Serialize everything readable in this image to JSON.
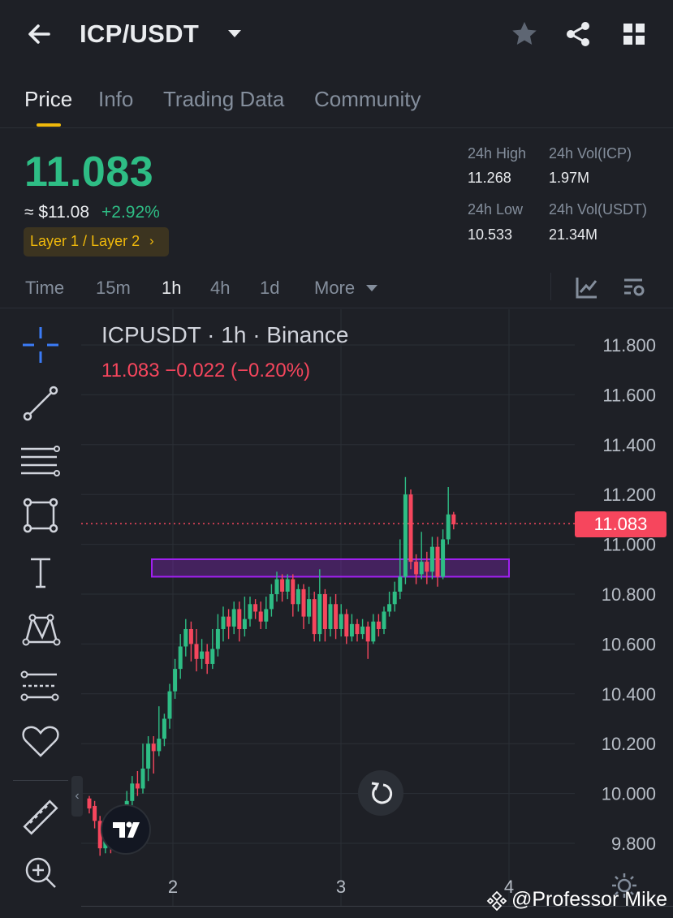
{
  "header": {
    "pair": "ICP/USDT",
    "icons": [
      "back-arrow-icon",
      "caret-down-icon",
      "star-icon",
      "share-icon",
      "grid-icon"
    ]
  },
  "tabs": [
    {
      "label": "Price",
      "active": true
    },
    {
      "label": "Info",
      "active": false
    },
    {
      "label": "Trading Data",
      "active": false
    },
    {
      "label": "Community",
      "active": false
    }
  ],
  "price": {
    "last": "11.083",
    "usd": "≈ $11.08",
    "change_pct": "+2.92%",
    "tag": "Layer 1 / Layer 2",
    "tag_chevron": "›"
  },
  "stats": {
    "high_label": "24h High",
    "high_value": "11.268",
    "low_label": "24h Low",
    "low_value": "10.533",
    "vol_base_label": "24h Vol(ICP)",
    "vol_base_value": "1.97M",
    "vol_quote_label": "24h Vol(USDT)",
    "vol_quote_value": "21.34M"
  },
  "intervals": [
    {
      "label": "Time",
      "active": false
    },
    {
      "label": "15m",
      "active": false
    },
    {
      "label": "1h",
      "active": true
    },
    {
      "label": "4h",
      "active": false
    },
    {
      "label": "1d",
      "active": false
    },
    {
      "label": "More",
      "active": false
    }
  ],
  "chart": {
    "title": "ICPUSDT · 1h · Binance",
    "ohlc_line": "11.083  −0.022 (−0.20%)",
    "current_price_label": "11.083",
    "colors": {
      "up": "#2ebd85",
      "down": "#f6465d",
      "zone": "#a020f0"
    },
    "tools": [
      "crosshair-icon",
      "trendline-icon",
      "fib-lines-icon",
      "rectangle-icon",
      "text-icon",
      "pattern-icon",
      "forecast-icon",
      "favorite-icon",
      "ruler-icon",
      "zoom-in-icon"
    ],
    "collapse_label": "‹",
    "watermark": "@Professor Mike"
  },
  "chart_data": {
    "type": "candlestick",
    "title": "ICPUSDT · 1h · Binance",
    "xlabel": "",
    "ylabel": "",
    "x_ticks": [
      "2",
      "3",
      "4"
    ],
    "y_ticks": [
      "9.800",
      "10.000",
      "10.200",
      "10.400",
      "10.600",
      "10.800",
      "11.000",
      "11.200",
      "11.400",
      "11.600",
      "11.800"
    ],
    "ylim": [
      9.78,
      11.85
    ],
    "current_price": 11.083,
    "support_zone": {
      "low": 10.87,
      "high": 10.94
    },
    "grid": true,
    "candles": [
      [
        9.98,
        9.94,
        9.92,
        9.99
      ],
      [
        9.95,
        9.89,
        9.86,
        9.97
      ],
      [
        9.89,
        9.78,
        9.75,
        9.91
      ],
      [
        9.78,
        9.82,
        9.76,
        9.85
      ],
      [
        9.82,
        9.79,
        9.76,
        9.86
      ],
      [
        9.79,
        9.86,
        9.77,
        9.9
      ],
      [
        9.86,
        9.92,
        9.84,
        9.95
      ],
      [
        9.92,
        9.97,
        9.9,
        10.01
      ],
      [
        9.97,
        10.04,
        9.95,
        10.07
      ],
      [
        10.04,
        10.02,
        9.99,
        10.09
      ],
      [
        10.02,
        10.1,
        10.0,
        10.2
      ],
      [
        10.1,
        10.2,
        10.05,
        10.23
      ],
      [
        10.2,
        10.17,
        10.08,
        10.23
      ],
      [
        10.17,
        10.22,
        10.15,
        10.35
      ],
      [
        10.22,
        10.3,
        10.19,
        10.32
      ],
      [
        10.3,
        10.41,
        10.26,
        10.44
      ],
      [
        10.41,
        10.5,
        10.38,
        10.54
      ],
      [
        10.5,
        10.59,
        10.46,
        10.64
      ],
      [
        10.59,
        10.66,
        10.55,
        10.7
      ],
      [
        10.66,
        10.6,
        10.53,
        10.69
      ],
      [
        10.6,
        10.54,
        10.49,
        10.66
      ],
      [
        10.54,
        10.57,
        10.5,
        10.62
      ],
      [
        10.57,
        10.52,
        10.48,
        10.6
      ],
      [
        10.52,
        10.58,
        10.5,
        10.66
      ],
      [
        10.58,
        10.66,
        10.55,
        10.72
      ],
      [
        10.66,
        10.71,
        10.61,
        10.75
      ],
      [
        10.71,
        10.67,
        10.62,
        10.74
      ],
      [
        10.67,
        10.74,
        10.64,
        10.77
      ],
      [
        10.74,
        10.66,
        10.61,
        10.77
      ],
      [
        10.66,
        10.7,
        10.63,
        10.79
      ],
      [
        10.7,
        10.76,
        10.67,
        10.79
      ],
      [
        10.76,
        10.73,
        10.7,
        10.78
      ],
      [
        10.73,
        10.69,
        10.66,
        10.77
      ],
      [
        10.69,
        10.74,
        10.66,
        10.79
      ],
      [
        10.74,
        10.8,
        10.71,
        10.84
      ],
      [
        10.8,
        10.86,
        10.77,
        10.89
      ],
      [
        10.86,
        10.81,
        10.77,
        10.88
      ],
      [
        10.81,
        10.86,
        10.78,
        10.88
      ],
      [
        10.86,
        10.76,
        10.71,
        10.88
      ],
      [
        10.76,
        10.82,
        10.73,
        10.84
      ],
      [
        10.82,
        10.71,
        10.66,
        10.84
      ],
      [
        10.71,
        10.78,
        10.68,
        10.83
      ],
      [
        10.78,
        10.64,
        10.61,
        10.81
      ],
      [
        10.64,
        10.8,
        10.61,
        10.9
      ],
      [
        10.8,
        10.66,
        10.61,
        10.82
      ],
      [
        10.66,
        10.76,
        10.63,
        10.79
      ],
      [
        10.76,
        10.66,
        10.62,
        10.8
      ],
      [
        10.66,
        10.72,
        10.63,
        10.76
      ],
      [
        10.72,
        10.63,
        10.6,
        10.74
      ],
      [
        10.63,
        10.68,
        10.61,
        10.72
      ],
      [
        10.68,
        10.64,
        10.61,
        10.7
      ],
      [
        10.64,
        10.67,
        10.62,
        10.7
      ],
      [
        10.67,
        10.61,
        10.54,
        10.69
      ],
      [
        10.61,
        10.69,
        10.6,
        10.72
      ],
      [
        10.69,
        10.66,
        10.63,
        10.72
      ],
      [
        10.66,
        10.73,
        10.64,
        10.75
      ],
      [
        10.73,
        10.76,
        10.71,
        10.81
      ],
      [
        10.76,
        10.81,
        10.73,
        10.85
      ],
      [
        10.81,
        10.87,
        10.78,
        11.02
      ],
      [
        10.87,
        11.2,
        10.84,
        11.27
      ],
      [
        11.2,
        10.93,
        10.9,
        11.22
      ],
      [
        10.93,
        10.88,
        10.84,
        10.96
      ],
      [
        10.88,
        10.93,
        10.86,
        11.05
      ],
      [
        10.93,
        10.89,
        10.84,
        10.97
      ],
      [
        10.89,
        10.99,
        10.86,
        11.03
      ],
      [
        10.99,
        10.87,
        10.83,
        11.03
      ],
      [
        10.87,
        11.02,
        10.86,
        11.06
      ],
      [
        11.02,
        11.12,
        11.0,
        11.23
      ],
      [
        11.12,
        11.08,
        11.06,
        11.13
      ]
    ]
  }
}
